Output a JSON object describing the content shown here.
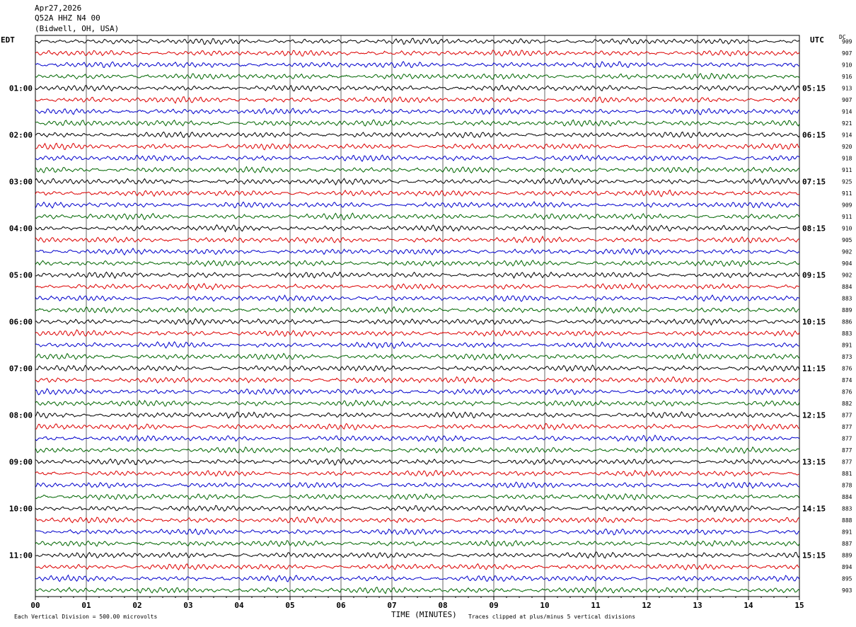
{
  "header": {
    "date": "Apr27,2026",
    "station": "Q52A HHZ N4 00",
    "location": "(Bidwell, OH, USA)"
  },
  "left_tz": "EDT",
  "right_tz": "UTC",
  "dc_label": "DC",
  "footer": {
    "scale_note": "Each Vertical Division =  500.00 microvolts",
    "xlabel": "TIME (MINUTES)",
    "clip_note": "Traces clipped at plus/minus 5 vertical divisions"
  },
  "colors": {
    "trace_cycle": [
      "#000000",
      "#dd0000",
      "#0000cc",
      "#006600"
    ],
    "grid": "#000000"
  },
  "chart_data": {
    "type": "line",
    "title": "Q52A HHZ N4 00",
    "xlabel": "TIME (MINUTES)",
    "xlim": [
      0,
      15
    ],
    "x_ticks": [
      "00",
      "01",
      "02",
      "03",
      "04",
      "05",
      "06",
      "07",
      "08",
      "09",
      "10",
      "11",
      "12",
      "13",
      "14",
      "15"
    ],
    "left_hour_labels": [
      "01:00",
      "02:00",
      "03:00",
      "04:00",
      "05:00",
      "06:00",
      "07:00",
      "08:00",
      "09:00",
      "10:00",
      "11:00"
    ],
    "right_hour_labels": [
      "05:15",
      "06:15",
      "07:15",
      "08:15",
      "09:15",
      "10:15",
      "11:15",
      "12:15",
      "13:15",
      "14:15",
      "15:15"
    ],
    "dc_offsets": [
      909,
      907,
      910,
      916,
      913,
      907,
      914,
      921,
      914,
      920,
      918,
      911,
      925,
      911,
      909,
      911,
      910,
      905,
      902,
      904,
      902,
      884,
      883,
      889,
      886,
      883,
      891,
      873,
      876,
      874,
      876,
      882,
      877,
      877,
      877,
      877,
      877,
      881,
      878,
      884,
      883,
      888,
      891,
      887,
      889,
      894,
      895,
      903
    ],
    "rows": 48,
    "row_minutes": 15
  }
}
